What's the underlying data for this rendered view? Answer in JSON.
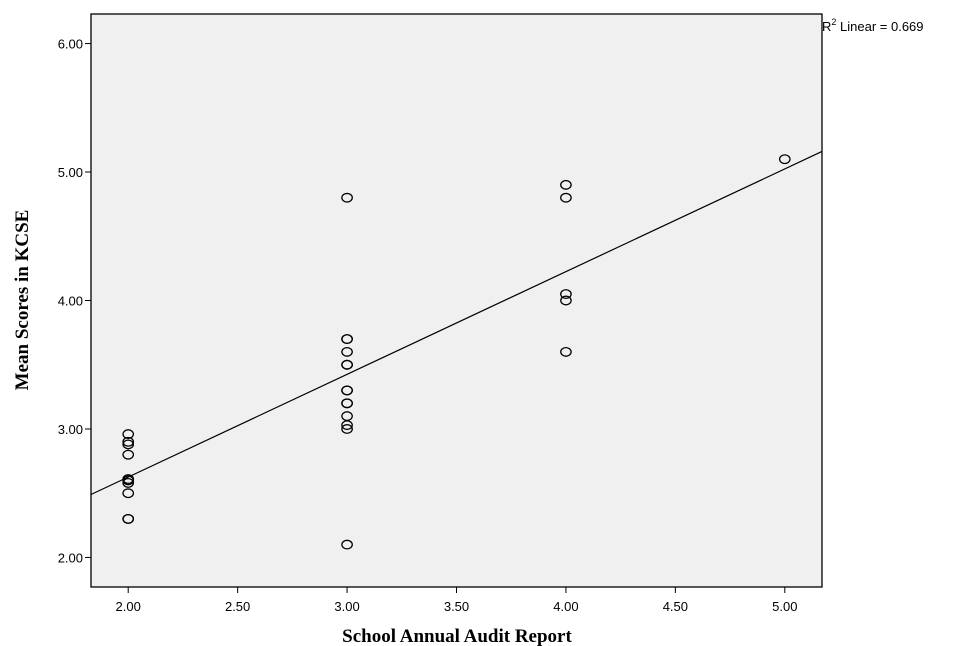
{
  "chart_data": {
    "type": "scatter",
    "xlabel": "School Annual Audit Report",
    "ylabel": "Mean Scores in KCSE",
    "xlim": [
      1.83,
      5.17
    ],
    "ylim": [
      1.77,
      6.23
    ],
    "x_ticks": [
      2.0,
      2.5,
      3.0,
      3.5,
      4.0,
      4.5,
      5.0
    ],
    "x_tick_labels": [
      "2.00",
      "2.50",
      "3.00",
      "3.50",
      "4.00",
      "4.50",
      "5.00"
    ],
    "y_ticks": [
      2.0,
      3.0,
      4.0,
      5.0,
      6.0
    ],
    "y_tick_labels": [
      "2.00",
      "3.00",
      "4.00",
      "5.00",
      "6.00"
    ],
    "grid": false,
    "plot_background": "#f0f0f0",
    "marker_color": "#000000",
    "points": [
      {
        "x": 2.0,
        "y": 2.96
      },
      {
        "x": 2.0,
        "y": 2.9
      },
      {
        "x": 2.0,
        "y": 2.88
      },
      {
        "x": 2.0,
        "y": 2.8
      },
      {
        "x": 2.0,
        "y": 2.61
      },
      {
        "x": 2.0,
        "y": 2.6
      },
      {
        "x": 2.0,
        "y": 2.58
      },
      {
        "x": 2.0,
        "y": 2.5
      },
      {
        "x": 2.0,
        "y": 2.3
      },
      {
        "x": 2.0,
        "y": 2.3
      },
      {
        "x": 3.0,
        "y": 4.8
      },
      {
        "x": 3.0,
        "y": 3.7
      },
      {
        "x": 3.0,
        "y": 3.7
      },
      {
        "x": 3.0,
        "y": 3.6
      },
      {
        "x": 3.0,
        "y": 3.5
      },
      {
        "x": 3.0,
        "y": 3.5
      },
      {
        "x": 3.0,
        "y": 3.3
      },
      {
        "x": 3.0,
        "y": 3.3
      },
      {
        "x": 3.0,
        "y": 3.2
      },
      {
        "x": 3.0,
        "y": 3.2
      },
      {
        "x": 3.0,
        "y": 3.1
      },
      {
        "x": 3.0,
        "y": 3.03
      },
      {
        "x": 3.0,
        "y": 3.0
      },
      {
        "x": 3.0,
        "y": 2.1
      },
      {
        "x": 4.0,
        "y": 4.9
      },
      {
        "x": 4.0,
        "y": 4.8
      },
      {
        "x": 4.0,
        "y": 4.05
      },
      {
        "x": 4.0,
        "y": 4.0
      },
      {
        "x": 4.0,
        "y": 3.6
      },
      {
        "x": 5.0,
        "y": 5.1
      }
    ],
    "fit_line": {
      "type": "linear",
      "x": [
        1.83,
        5.17
      ],
      "y": [
        2.49,
        5.16
      ]
    },
    "annotation": {
      "prefix": "R",
      "superscript": "2",
      "suffix": " Linear = 0.669"
    }
  }
}
